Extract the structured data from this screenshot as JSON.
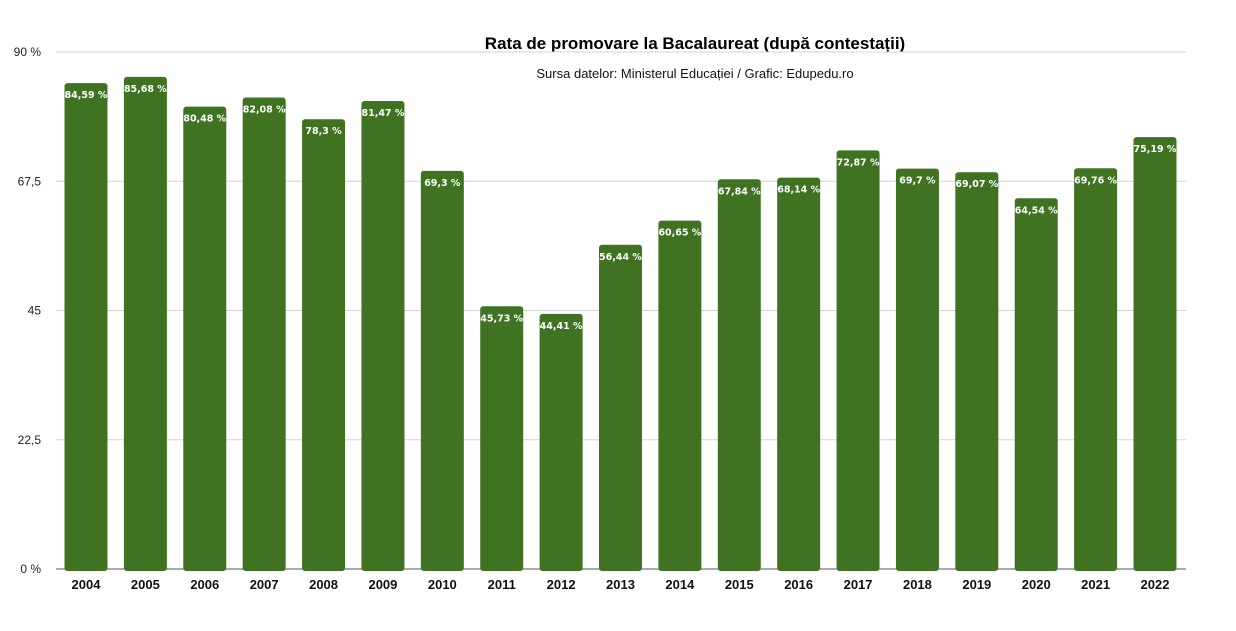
{
  "chart_data": {
    "type": "bar",
    "title": "Rata de promovare la Bacalaureat (după contestații)",
    "subtitle": "Sursa datelor: Ministerul Educației / Grafic: Edupedu.ro",
    "categories": [
      "2004",
      "2005",
      "2006",
      "2007",
      "2008",
      "2009",
      "2010",
      "2011",
      "2012",
      "2013",
      "2014",
      "2015",
      "2016",
      "2017",
      "2018",
      "2019",
      "2020",
      "2021",
      "2022"
    ],
    "values": [
      84.59,
      85.68,
      80.48,
      82.08,
      78.3,
      81.47,
      69.3,
      45.73,
      44.41,
      56.44,
      60.65,
      67.84,
      68.14,
      72.87,
      69.7,
      69.07,
      64.54,
      69.76,
      75.19
    ],
    "data_labels": [
      "84,59 %",
      "85,68 %",
      "80,48 %",
      "82,08 %",
      "78,3 %",
      "81,47 %",
      "69,3 %",
      "45,73 %",
      "44,41 %",
      "56,44 %",
      "60,65 %",
      "67,84 %",
      "68,14 %",
      "72,87 %",
      "69,7 %",
      "69,07 %",
      "64,54 %",
      "69,76 %",
      "75,19 %"
    ],
    "ylim": [
      0,
      90
    ],
    "yticks": [
      0,
      22.5,
      45,
      67.5,
      90
    ],
    "ytick_labels": [
      "0 %",
      "22,5",
      "45",
      "67,5",
      "90 %"
    ],
    "grid": true,
    "bar_color": "#3f7321"
  }
}
